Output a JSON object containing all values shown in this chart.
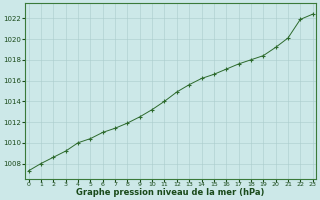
{
  "x": [
    0,
    1,
    2,
    3,
    4,
    5,
    6,
    7,
    8,
    9,
    10,
    11,
    12,
    13,
    14,
    15,
    16,
    17,
    18,
    19,
    20,
    21,
    22,
    23
  ],
  "y": [
    1007.3,
    1008.0,
    1008.6,
    1009.2,
    1010.0,
    1010.4,
    1011.0,
    1011.4,
    1011.9,
    1012.5,
    1013.2,
    1014.0,
    1014.9,
    1015.6,
    1016.2,
    1016.6,
    1017.1,
    1017.6,
    1018.0,
    1018.4,
    1019.2,
    1020.1,
    1021.9,
    1022.4
  ],
  "line_color": "#2d6a2d",
  "marker_color": "#2d6a2d",
  "bg_color": "#cce8e8",
  "grid_color": "#aacccc",
  "xlabel": "Graphe pression niveau de la mer (hPa)",
  "ylim_min": 1006.5,
  "ylim_max": 1023.5,
  "ytick_min": 1008,
  "ytick_max": 1022,
  "ytick_step": 2,
  "title_color": "#1a4a1a",
  "spine_color": "#3a7a3a"
}
